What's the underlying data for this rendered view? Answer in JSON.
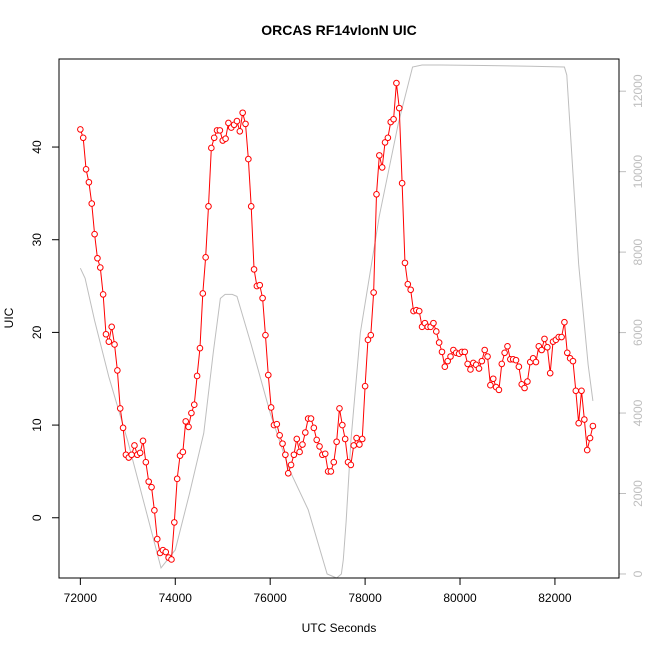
{
  "chart_data": {
    "type": "line",
    "title": "ORCAS RF14vlonN UIC",
    "xlabel": "UTC Seconds",
    "ylabel": "UIC",
    "y2label": "",
    "xlim": [
      71550,
      83350
    ],
    "ylim": [
      -6.5,
      49.5
    ],
    "y2lim": [
      -100,
      12800
    ],
    "x_ticks": [
      72000,
      74000,
      76000,
      78000,
      80000,
      82000
    ],
    "y_ticks": [
      0,
      10,
      20,
      30,
      40
    ],
    "y2_ticks": [
      0,
      2000,
      4000,
      6000,
      8000,
      10000,
      12000
    ],
    "grid": false,
    "legend": "none",
    "series": [
      {
        "axis": "left",
        "style": "line-with-circles",
        "color": "#ff0000",
        "x": [
          72000,
          72060,
          72120,
          72180,
          72240,
          72300,
          72360,
          72420,
          72480,
          72540,
          72600,
          72660,
          72720,
          72780,
          72840,
          72900,
          72960,
          73020,
          73080,
          73140,
          73200,
          73260,
          73320,
          73380,
          73440,
          73500,
          73560,
          73620,
          73680,
          73740,
          73800,
          73860,
          73920,
          73980,
          74040,
          74100,
          74160,
          74220,
          74280,
          74340,
          74400,
          74460,
          74520,
          74580,
          74640,
          74700,
          74760,
          74820,
          74880,
          74940,
          75000,
          75060,
          75120,
          75180,
          75240,
          75300,
          75360,
          75420,
          75480,
          75540,
          75600,
          75660,
          75720,
          75780,
          75840,
          75900,
          75960,
          76020,
          76080,
          76140,
          76200,
          76260,
          76320,
          76380,
          76440,
          76500,
          76560,
          76620,
          76680,
          76740,
          76800,
          76860,
          76920,
          76980,
          77040,
          77100,
          77160,
          77220,
          77280,
          77340,
          77400,
          77460,
          77520,
          77580,
          77640,
          77700,
          77760,
          77820,
          77880,
          77940,
          78000,
          78060,
          78120,
          78180,
          78240,
          78300,
          78360,
          78420,
          78480,
          78540,
          78600,
          78660,
          78720,
          78780,
          78840,
          78900,
          78960,
          79020,
          79080,
          79140,
          79200,
          79260,
          79320,
          79380,
          79440,
          79500,
          79560,
          79620,
          79680,
          79740,
          79800,
          79860,
          79920,
          79980,
          80040,
          80100,
          80160,
          80220,
          80280,
          80340,
          80400,
          80460,
          80520,
          80580,
          80640,
          80700,
          80760,
          80820,
          80880,
          80940,
          81000,
          81060,
          81120,
          81180,
          81240,
          81300,
          81360,
          81420,
          81480,
          81540,
          81600,
          81660,
          81720,
          81780,
          81840,
          81900,
          81960,
          82020,
          82080,
          82140,
          82200,
          82260,
          82320,
          82380,
          82440,
          82500,
          82560,
          82620,
          82680,
          82740,
          82800
        ],
        "y": [
          41.9,
          41.0,
          37.6,
          36.2,
          33.9,
          30.6,
          28.0,
          27.0,
          24.1,
          19.8,
          19.0,
          20.6,
          18.7,
          15.9,
          11.8,
          9.7,
          6.8,
          6.5,
          6.8,
          7.8,
          6.8,
          7.0,
          8.3,
          6.0,
          3.9,
          3.3,
          0.8,
          -2.3,
          -3.8,
          -3.5,
          -3.7,
          -4.3,
          -4.5,
          -0.5,
          4.2,
          6.7,
          7.1,
          10.4,
          9.8,
          11.3,
          12.2,
          15.3,
          18.3,
          24.2,
          28.1,
          33.6,
          39.9,
          41.0,
          41.8,
          41.8,
          40.7,
          40.9,
          42.6,
          42.1,
          42.4,
          42.8,
          41.7,
          43.7,
          42.5,
          38.7,
          33.6,
          26.8,
          25.0,
          25.1,
          23.7,
          19.7,
          15.4,
          11.9,
          10.0,
          10.1,
          8.9,
          8.0,
          6.8,
          4.8,
          5.7,
          6.8,
          8.5,
          7.1,
          7.9,
          9.2,
          10.7,
          10.7,
          9.7,
          8.4,
          7.7,
          6.8,
          6.9,
          5.0,
          5.0,
          6.0,
          8.2,
          11.8,
          10.0,
          8.5,
          6.0,
          5.7,
          7.8,
          8.6,
          7.9,
          8.5,
          14.2,
          19.2,
          19.7,
          24.3,
          34.9,
          39.1,
          37.8,
          40.5,
          41.0,
          42.7,
          43.0,
          46.9,
          44.2,
          36.1,
          27.5,
          25.2,
          24.6,
          22.3,
          22.4,
          22.3,
          20.6,
          21.0,
          20.6,
          20.6,
          21.0,
          20.1,
          18.9,
          17.9,
          16.3,
          16.9,
          17.4,
          18.1,
          17.8,
          17.7,
          17.9,
          17.9,
          16.6,
          16.0,
          16.7,
          16.5,
          16.1,
          16.9,
          18.1,
          17.4,
          14.3,
          15.0,
          14.1,
          13.8,
          16.6,
          17.8,
          18.5,
          17.1,
          17.1,
          17.0,
          16.3,
          14.4,
          14.0,
          14.7,
          16.8,
          17.2,
          16.8,
          18.5,
          18.1,
          19.3,
          18.4,
          15.6,
          19.0,
          19.2,
          19.5,
          19.5,
          21.1,
          17.8,
          17.2,
          16.9,
          13.7,
          10.2,
          13.7,
          10.6,
          7.3,
          8.6,
          9.9
        ]
      },
      {
        "axis": "right",
        "style": "line",
        "color": "#bebebe",
        "x": [
          72000,
          72100,
          72300,
          72600,
          73000,
          73400,
          73700,
          74000,
          74300,
          74600,
          74800,
          74950,
          75050,
          75200,
          75300,
          75600,
          76000,
          76400,
          76800,
          77200,
          77400,
          77500,
          77540,
          77600,
          77700,
          77900,
          78300,
          78700,
          79000,
          79200,
          79600,
          80500,
          81500,
          82200,
          82250,
          82500,
          82700,
          82800
        ],
        "y": [
          7600,
          7350,
          6300,
          4900,
          3300,
          1500,
          150,
          600,
          2000,
          3500,
          5500,
          6850,
          6950,
          6950,
          6900,
          5700,
          4000,
          2600,
          1600,
          0,
          -100,
          0,
          350,
          1300,
          3300,
          6000,
          8900,
          11200,
          12600,
          12650,
          12650,
          12640,
          12620,
          12600,
          12400,
          7700,
          5200,
          4300
        ]
      }
    ]
  }
}
